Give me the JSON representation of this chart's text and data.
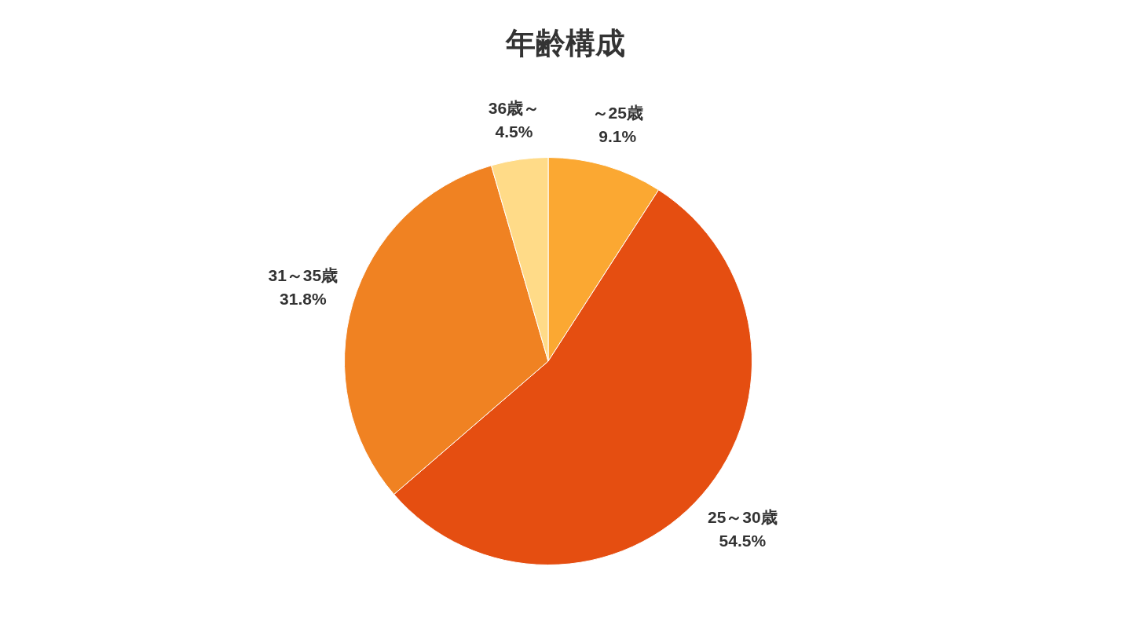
{
  "chart_data": {
    "type": "pie",
    "title": "年齢構成",
    "categories": [
      "～25歳",
      "25～30歳",
      "31～35歳",
      "36歳～"
    ],
    "values": [
      9.1,
      54.5,
      31.8,
      4.5
    ],
    "value_labels": [
      "9.1%",
      "54.5%",
      "31.8%",
      "4.5%"
    ],
    "colors": [
      "#fba832",
      "#e54e11",
      "#f08222",
      "#ffdb88"
    ],
    "legend": false
  }
}
